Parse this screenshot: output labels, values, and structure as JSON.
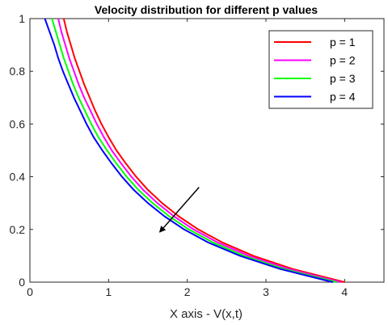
{
  "chart_data": {
    "type": "line",
    "title": "Velocity distribution for different p values",
    "xlabel": "X axis - V(x,t)",
    "ylabel": "",
    "xlim": [
      0,
      4.5
    ],
    "ylim": [
      0,
      1
    ],
    "xticks": [
      0,
      1,
      2,
      3,
      4
    ],
    "yticks": [
      0,
      0.2,
      0.4,
      0.6,
      0.8,
      1
    ],
    "grid": false,
    "legend_position": "top-right",
    "y": [
      0,
      0.05,
      0.1,
      0.15,
      0.2,
      0.25,
      0.3,
      0.35,
      0.4,
      0.45,
      0.5,
      0.55,
      0.6,
      0.65,
      0.7,
      0.75,
      0.8,
      0.85,
      0.9,
      0.95,
      1
    ],
    "series": [
      {
        "name": "p = 1",
        "color": "#ff0000",
        "x": [
          4.0,
          3.34,
          2.84,
          2.45,
          2.14,
          1.89,
          1.68,
          1.5,
          1.35,
          1.22,
          1.1,
          1.0,
          0.91,
          0.83,
          0.76,
          0.69,
          0.63,
          0.57,
          0.52,
          0.47,
          0.43
        ]
      },
      {
        "name": "p = 2",
        "color": "#ff00ff",
        "x": [
          3.95,
          3.29,
          2.78,
          2.39,
          2.08,
          1.83,
          1.62,
          1.44,
          1.29,
          1.16,
          1.04,
          0.94,
          0.85,
          0.77,
          0.69,
          0.62,
          0.56,
          0.5,
          0.45,
          0.4,
          0.36
        ]
      },
      {
        "name": "p = 3",
        "color": "#00ff00",
        "x": [
          3.9,
          3.23,
          2.72,
          2.33,
          2.02,
          1.77,
          1.56,
          1.38,
          1.23,
          1.1,
          0.98,
          0.87,
          0.78,
          0.7,
          0.62,
          0.55,
          0.49,
          0.43,
          0.38,
          0.33,
          0.28
        ]
      },
      {
        "name": "p = 4",
        "color": "#0000ff",
        "x": [
          3.85,
          3.18,
          2.67,
          2.27,
          1.96,
          1.71,
          1.5,
          1.32,
          1.17,
          1.04,
          0.92,
          0.81,
          0.72,
          0.64,
          0.56,
          0.49,
          0.42,
          0.36,
          0.31,
          0.25,
          0.19
        ]
      }
    ],
    "annotations": [
      {
        "type": "arrow",
        "from": [
          2.15,
          0.36
        ],
        "to": [
          1.65,
          0.19
        ],
        "color": "#000000"
      }
    ]
  }
}
